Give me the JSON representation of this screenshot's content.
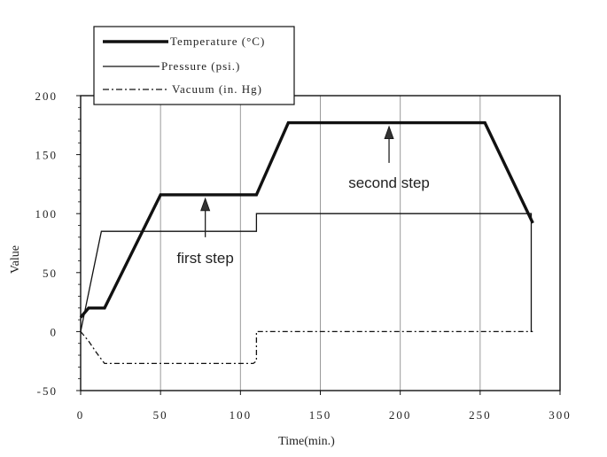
{
  "chart_data": {
    "type": "line",
    "xlabel": "Time(min.)",
    "ylabel": "Value",
    "xlim": [
      0,
      300
    ],
    "ylim": [
      -50,
      200
    ],
    "xticks": [
      0,
      50,
      100,
      150,
      200,
      250,
      300
    ],
    "yticks": [
      -50,
      0,
      50,
      100,
      150,
      200
    ],
    "xtick_labels": [
      "0",
      "50",
      "100",
      "150",
      "200",
      "250",
      "300"
    ],
    "ytick_labels": [
      "-50",
      "0",
      "50",
      "100",
      "150",
      "200"
    ],
    "vertical_grid": true,
    "horizontal_grid": false,
    "vertical_grid_at": [
      50,
      100,
      150,
      200,
      250
    ],
    "legend_position": "top-left",
    "series": [
      {
        "name": "Temperature (°C)",
        "style": "thick-solid",
        "color": "#111111",
        "x": [
          0,
          5,
          15,
          50,
          110,
          130,
          253,
          283
        ],
        "y": [
          12,
          20,
          20,
          116,
          116,
          177,
          177,
          92
        ]
      },
      {
        "name": "Pressure (psi.)",
        "style": "thin-solid",
        "color": "#111111",
        "x": [
          0,
          13,
          110,
          110,
          282,
          282,
          283
        ],
        "y": [
          0,
          85,
          85,
          100,
          100,
          0,
          0
        ]
      },
      {
        "name": "Vacuum (in. Hg)",
        "style": "dash-dot",
        "color": "#111111",
        "x": [
          0,
          5,
          10,
          15,
          108,
          110,
          110,
          282
        ],
        "y": [
          0,
          -8,
          -18,
          -27,
          -27,
          -25,
          0,
          0
        ]
      }
    ],
    "annotations": [
      {
        "text": "first step",
        "arrow_x": 78,
        "arrow_tail_y": 80,
        "arrow_head_y": 113,
        "text_x": 78,
        "text_y": 58
      },
      {
        "text": "second step",
        "arrow_x": 193,
        "arrow_tail_y": 143,
        "arrow_head_y": 174,
        "text_x": 193,
        "text_y": 122
      }
    ]
  }
}
